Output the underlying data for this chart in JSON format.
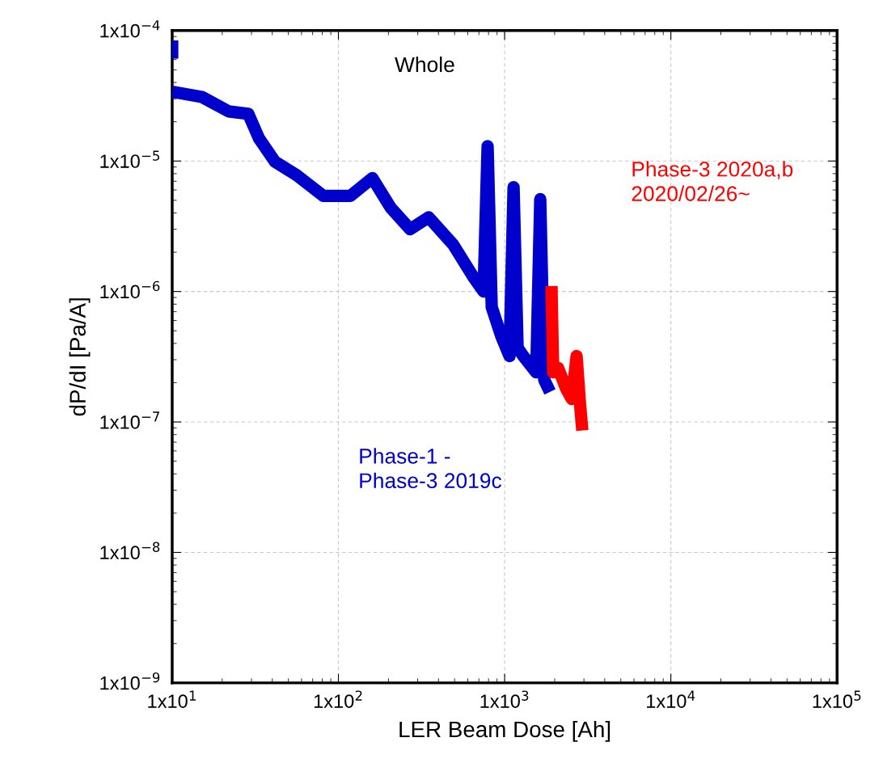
{
  "chart_data": {
    "type": "line",
    "xlabel": "LER Beam Dose [Ah]",
    "ylabel": "dP/dI [Pa/A]",
    "annotations": [
      "Whole"
    ],
    "log": "xy",
    "grid": true,
    "marker": "none",
    "line_style": "solid",
    "xlim": [
      10,
      100000
    ],
    "ylim": [
      1e-09,
      0.0001
    ],
    "xticks": [
      {
        "value": 10,
        "label": "1x10$^{1}$"
      },
      {
        "value": 100,
        "label": "1x10$^{2}$"
      },
      {
        "value": 1000,
        "label": "1x10$^{3}$"
      },
      {
        "value": 10000,
        "label": "1x10$^{4}$"
      },
      {
        "value": 100000,
        "label": "1x10$^{5}$"
      }
    ],
    "yticks": [
      {
        "value": 1e-09,
        "label": "1x10$^{−9}$"
      },
      {
        "value": 1e-08,
        "label": "1x10$^{−8}$"
      },
      {
        "value": 1e-07,
        "label": "1x10$^{−7}$"
      },
      {
        "value": 1e-06,
        "label": "1x10$^{−6}$"
      },
      {
        "value": 1e-05,
        "label": "1x10$^{−5}$"
      },
      {
        "value": 0.0001,
        "label": "1x10$^{−4}$"
      }
    ],
    "series": [
      {
        "name": "Phase-1 -\nPhase-3 2019c",
        "color": "#0000cc",
        "x": [
          10,
          10,
          null,
          10,
          15.1,
          21.9,
          28.7,
          33.2,
          41.5,
          56.1,
          81.3,
          118,
          160,
          206,
          270,
          349,
          489,
          646,
          747,
          790,
          836,
          957,
          1070,
          1132,
          1197,
          1295,
          1549,
          1638,
          1731,
          1874
        ],
        "values": [
          8.4e-05,
          6.1e-05,
          null,
          3.4e-05,
          3.1e-05,
          2.4e-05,
          2.3e-05,
          1.5e-05,
          9.9e-06,
          7.8e-06,
          5.4e-06,
          5.4e-06,
          7.4e-06,
          4.4e-06,
          3e-06,
          3.7e-06,
          2.3e-06,
          1.3e-06,
          1e-06,
          1.3e-05,
          7.6e-07,
          4.5e-07,
          3.2e-07,
          6.3e-06,
          3.7e-07,
          3.2e-07,
          2.4e-07,
          5.1e-06,
          2.1e-07,
          1.7e-07
        ]
      },
      {
        "name": "Phase-3 2020a,b\n2020/02/26~",
        "color": "#ff0000",
        "x": [
          1914,
          1959,
          2094,
          2344,
          2535,
          2710,
          2838,
          2933
        ],
        "values": [
          1.1e-06,
          2.4e-07,
          2.6e-07,
          1.8e-07,
          1.5e-07,
          3.2e-07,
          1.4e-07,
          8.6e-08
        ]
      }
    ]
  }
}
